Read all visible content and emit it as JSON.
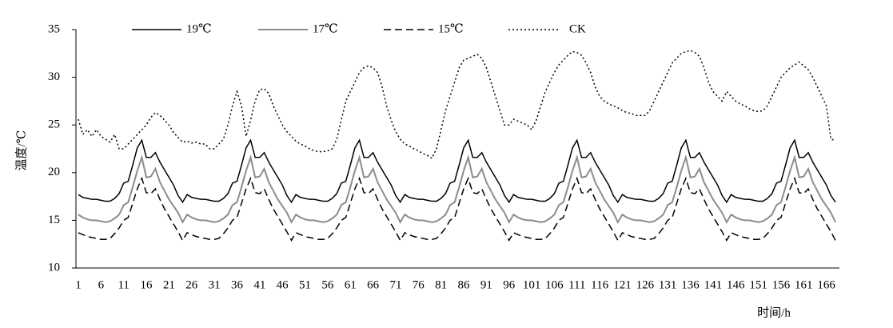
{
  "chart_data": {
    "type": "line",
    "y_label": "温度/℃",
    "x_label": "时间/h",
    "categories": [
      "1",
      null,
      null,
      null,
      null,
      "6",
      null,
      null,
      null,
      null,
      "11",
      null,
      null,
      null,
      null,
      "16",
      null,
      null,
      null,
      null,
      "21",
      null,
      null,
      null,
      null,
      "26",
      null,
      null,
      null,
      null,
      "31",
      null,
      null,
      null,
      null,
      "36",
      null,
      null,
      null,
      null,
      "41",
      null,
      null,
      null,
      null,
      "46",
      null,
      null,
      null,
      null,
      "51",
      null,
      null,
      null,
      null,
      "56",
      null,
      null,
      null,
      null,
      "61",
      null,
      null,
      null,
      null,
      "66",
      null,
      null,
      null,
      null,
      "71",
      null,
      null,
      null,
      null,
      "76",
      null,
      null,
      null,
      null,
      "81",
      null,
      null,
      null,
      null,
      "86",
      null,
      null,
      null,
      null,
      "91",
      null,
      null,
      null,
      null,
      "96",
      null,
      null,
      null,
      null,
      "101",
      null,
      null,
      null,
      null,
      "106",
      null,
      null,
      null,
      null,
      "111",
      null,
      null,
      null,
      null,
      "116",
      null,
      null,
      null,
      null,
      "121",
      null,
      null,
      null,
      null,
      "126",
      null,
      null,
      null,
      null,
      "131",
      null,
      null,
      null,
      null,
      "136",
      null,
      null,
      null,
      null,
      "141",
      null,
      null,
      null,
      null,
      "146",
      null,
      null,
      null,
      null,
      "151",
      null,
      null,
      null,
      null,
      "156",
      null,
      null,
      null,
      null,
      "161",
      null,
      null,
      null,
      null,
      "166",
      null,
      null
    ],
    "ylim": [
      10,
      35
    ],
    "yticks": [
      10,
      15,
      20,
      25,
      30,
      35
    ],
    "grid": false,
    "legend": "top",
    "series": [
      {
        "name": "19℃",
        "color": "#000000",
        "dash": "solid",
        "values": [
          17.7,
          17.4,
          17.3,
          17.2,
          17.2,
          17.1,
          17.0,
          17.0,
          17.3,
          17.8,
          18.9,
          19.1,
          20.8,
          22.6,
          23.4,
          21.6,
          21.6,
          22.1,
          21.1,
          20.3,
          19.5,
          18.7,
          17.6,
          16.9,
          17.7,
          17.4,
          17.3,
          17.2,
          17.2,
          17.1,
          17.0,
          17.0,
          17.3,
          17.8,
          18.9,
          19.1,
          20.8,
          22.6,
          23.4,
          21.6,
          21.6,
          22.1,
          21.1,
          20.3,
          19.5,
          18.7,
          17.6,
          16.9,
          17.7,
          17.4,
          17.3,
          17.2,
          17.2,
          17.1,
          17.0,
          17.0,
          17.3,
          17.8,
          18.9,
          19.1,
          20.8,
          22.6,
          23.4,
          21.6,
          21.6,
          22.1,
          21.1,
          20.3,
          19.5,
          18.7,
          17.6,
          16.9,
          17.7,
          17.4,
          17.3,
          17.2,
          17.2,
          17.1,
          17.0,
          17.0,
          17.3,
          17.8,
          18.9,
          19.1,
          20.8,
          22.6,
          23.4,
          21.6,
          21.6,
          22.1,
          21.1,
          20.3,
          19.5,
          18.7,
          17.6,
          16.9,
          17.7,
          17.4,
          17.3,
          17.2,
          17.2,
          17.1,
          17.0,
          17.0,
          17.3,
          17.8,
          18.9,
          19.1,
          20.8,
          22.6,
          23.4,
          21.6,
          21.6,
          22.1,
          21.1,
          20.3,
          19.5,
          18.7,
          17.6,
          16.9,
          17.7,
          17.4,
          17.3,
          17.2,
          17.2,
          17.1,
          17.0,
          17.0,
          17.3,
          17.8,
          18.9,
          19.1,
          20.8,
          22.6,
          23.4,
          21.6,
          21.6,
          22.1,
          21.1,
          20.3,
          19.5,
          18.7,
          17.6,
          16.9,
          17.7,
          17.4,
          17.3,
          17.2,
          17.2,
          17.1,
          17.0,
          17.0,
          17.3,
          17.8,
          18.9,
          19.1,
          20.8,
          22.6,
          23.4,
          21.6,
          21.6,
          22.1,
          21.1,
          20.3,
          19.5,
          18.7,
          17.6,
          16.9
        ]
      },
      {
        "name": "17℃",
        "color": "#8c8c8c",
        "dash": "solid",
        "values": [
          15.6,
          15.3,
          15.1,
          15.0,
          15.0,
          14.9,
          14.8,
          14.9,
          15.2,
          15.6,
          16.6,
          16.9,
          18.5,
          20.2,
          21.6,
          19.5,
          19.6,
          20.4,
          19.0,
          18.1,
          17.2,
          16.5,
          15.8,
          14.8,
          15.6,
          15.3,
          15.1,
          15.0,
          15.0,
          14.9,
          14.8,
          14.9,
          15.2,
          15.6,
          16.6,
          16.9,
          18.5,
          20.2,
          21.6,
          19.5,
          19.6,
          20.4,
          19.0,
          18.1,
          17.2,
          16.5,
          15.8,
          14.8,
          15.6,
          15.3,
          15.1,
          15.0,
          15.0,
          14.9,
          14.8,
          14.9,
          15.2,
          15.6,
          16.6,
          16.9,
          18.5,
          20.2,
          21.6,
          19.5,
          19.6,
          20.4,
          19.0,
          18.1,
          17.2,
          16.5,
          15.8,
          14.8,
          15.6,
          15.3,
          15.1,
          15.0,
          15.0,
          14.9,
          14.8,
          14.9,
          15.2,
          15.6,
          16.6,
          16.9,
          18.5,
          20.2,
          21.6,
          19.5,
          19.6,
          20.4,
          19.0,
          18.1,
          17.2,
          16.5,
          15.8,
          14.8,
          15.6,
          15.3,
          15.1,
          15.0,
          15.0,
          14.9,
          14.8,
          14.9,
          15.2,
          15.6,
          16.6,
          16.9,
          18.5,
          20.2,
          21.6,
          19.5,
          19.6,
          20.4,
          19.0,
          18.1,
          17.2,
          16.5,
          15.8,
          14.8,
          15.6,
          15.3,
          15.1,
          15.0,
          15.0,
          14.9,
          14.8,
          14.9,
          15.2,
          15.6,
          16.6,
          16.9,
          18.5,
          20.2,
          21.6,
          19.5,
          19.6,
          20.4,
          19.0,
          18.1,
          17.2,
          16.5,
          15.8,
          14.8,
          15.6,
          15.3,
          15.1,
          15.0,
          15.0,
          14.9,
          14.8,
          14.9,
          15.2,
          15.6,
          16.6,
          16.9,
          18.5,
          20.2,
          21.6,
          19.5,
          19.6,
          20.4,
          19.0,
          18.1,
          17.2,
          16.5,
          15.8,
          14.8
        ]
      },
      {
        "name": "15℃",
        "color": "#000000",
        "dash": "dashed",
        "values": [
          13.7,
          13.5,
          13.3,
          13.2,
          13.1,
          13.0,
          13.0,
          13.1,
          13.6,
          14.2,
          15.0,
          15.3,
          16.8,
          18.3,
          19.4,
          17.9,
          17.8,
          18.3,
          17.2,
          16.2,
          15.4,
          14.6,
          13.8,
          12.9,
          13.7,
          13.5,
          13.3,
          13.2,
          13.1,
          13.0,
          13.0,
          13.1,
          13.6,
          14.2,
          15.0,
          15.3,
          16.8,
          18.3,
          19.4,
          17.9,
          17.8,
          18.3,
          17.2,
          16.2,
          15.4,
          14.6,
          13.8,
          12.9,
          13.7,
          13.5,
          13.3,
          13.2,
          13.1,
          13.0,
          13.0,
          13.1,
          13.6,
          14.2,
          15.0,
          15.3,
          16.8,
          18.3,
          19.4,
          17.9,
          17.8,
          18.3,
          17.2,
          16.2,
          15.4,
          14.6,
          13.8,
          12.9,
          13.7,
          13.5,
          13.3,
          13.2,
          13.1,
          13.0,
          13.0,
          13.1,
          13.6,
          14.2,
          15.0,
          15.3,
          16.8,
          18.3,
          19.4,
          17.9,
          17.8,
          18.3,
          17.2,
          16.2,
          15.4,
          14.6,
          13.8,
          12.9,
          13.7,
          13.5,
          13.3,
          13.2,
          13.1,
          13.0,
          13.0,
          13.1,
          13.6,
          14.2,
          15.0,
          15.3,
          16.8,
          18.3,
          19.4,
          17.9,
          17.8,
          18.3,
          17.2,
          16.2,
          15.4,
          14.6,
          13.8,
          12.9,
          13.7,
          13.5,
          13.3,
          13.2,
          13.1,
          13.0,
          13.0,
          13.1,
          13.6,
          14.2,
          15.0,
          15.3,
          16.8,
          18.3,
          19.4,
          17.9,
          17.8,
          18.3,
          17.2,
          16.2,
          15.4,
          14.6,
          13.8,
          12.9,
          13.7,
          13.5,
          13.3,
          13.2,
          13.1,
          13.0,
          13.0,
          13.1,
          13.6,
          14.2,
          15.0,
          15.3,
          16.8,
          18.3,
          19.4,
          17.9,
          17.8,
          18.3,
          17.2,
          16.2,
          15.4,
          14.6,
          13.8,
          12.9
        ]
      },
      {
        "name": "CK",
        "color": "#000000",
        "dash": "dotted",
        "values": [
          25.6,
          24.0,
          24.5,
          23.8,
          24.5,
          23.8,
          23.5,
          23.2,
          24.0,
          22.5,
          22.5,
          23.0,
          23.5,
          24.0,
          24.5,
          25.0,
          25.8,
          26.3,
          26.0,
          25.5,
          25.0,
          24.2,
          23.7,
          23.2,
          23.3,
          23.1,
          23.2,
          23.0,
          23.0,
          22.5,
          22.5,
          23.0,
          23.5,
          25.0,
          27.0,
          28.5,
          27.0,
          23.8,
          25.5,
          27.5,
          28.7,
          28.8,
          28.3,
          27.0,
          26.0,
          25.0,
          24.3,
          23.8,
          23.3,
          23.0,
          22.8,
          22.5,
          22.3,
          22.2,
          22.2,
          22.3,
          22.5,
          23.5,
          25.5,
          27.5,
          28.5,
          29.5,
          30.5,
          31.0,
          31.2,
          31.0,
          30.5,
          29.0,
          27.0,
          25.5,
          24.3,
          23.5,
          23.0,
          22.8,
          22.5,
          22.3,
          22.0,
          21.8,
          21.5,
          22.5,
          24.5,
          26.5,
          28.0,
          29.5,
          31.0,
          31.8,
          32.0,
          32.2,
          32.4,
          32.0,
          31.0,
          29.5,
          28.0,
          26.5,
          25.0,
          25.0,
          25.6,
          25.4,
          25.2,
          25.0,
          24.5,
          25.5,
          27.0,
          28.5,
          29.5,
          30.5,
          31.3,
          31.8,
          32.3,
          32.7,
          32.6,
          32.3,
          31.5,
          30.5,
          29.0,
          28.0,
          27.5,
          27.2,
          27.0,
          26.8,
          26.5,
          26.3,
          26.2,
          26.0,
          26.0,
          26.0,
          26.5,
          27.5,
          28.5,
          29.5,
          30.5,
          31.5,
          32.0,
          32.5,
          32.7,
          32.8,
          32.6,
          32.2,
          31.0,
          29.5,
          28.5,
          28.0,
          27.5,
          28.5,
          28.0,
          27.5,
          27.2,
          27.0,
          26.7,
          26.5,
          26.4,
          26.5,
          27.0,
          28.0,
          29.0,
          30.0,
          30.5,
          31.0,
          31.3,
          31.6,
          31.2,
          30.8,
          30.0,
          29.0,
          28.0,
          27.0,
          23.5,
          23.4
        ]
      }
    ]
  }
}
